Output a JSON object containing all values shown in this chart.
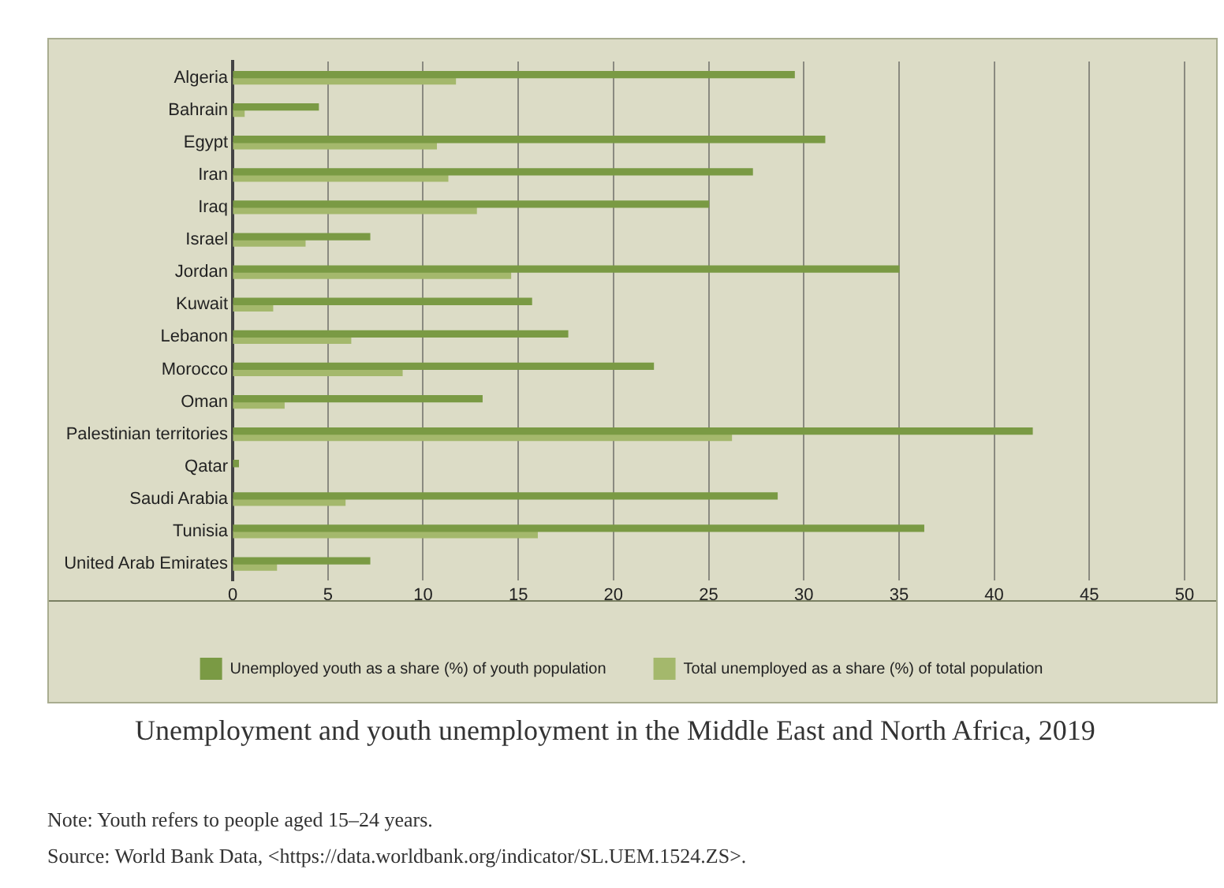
{
  "chart_data": {
    "type": "bar",
    "orientation": "horizontal",
    "title": "Unemployment and youth unemployment in the Middle East and North Africa, 2019",
    "categories": [
      "Algeria",
      "Bahrain",
      "Egypt",
      "Iran",
      "Iraq",
      "Israel",
      "Jordan",
      "Kuwait",
      "Lebanon",
      "Morocco",
      "Oman",
      "Palestinian territories",
      "Qatar",
      "Saudi Arabia",
      "Tunisia",
      "United Arab Emirates"
    ],
    "series": [
      {
        "name": "Unemployed youth as a share (%) of youth population",
        "color": "#7a9a44",
        "values": [
          29.5,
          4.5,
          31.1,
          27.3,
          25.0,
          7.2,
          35.0,
          15.7,
          17.6,
          22.1,
          13.1,
          42.0,
          0.3,
          28.6,
          36.3,
          7.2
        ]
      },
      {
        "name": "Total unemployed as a share (%) of total population",
        "color": "#a4b86c",
        "values": [
          11.7,
          0.6,
          10.7,
          11.3,
          12.8,
          3.8,
          14.6,
          2.1,
          6.2,
          8.9,
          2.7,
          26.2,
          null,
          5.9,
          16.0,
          2.3
        ]
      }
    ],
    "xlim": [
      0,
      50
    ],
    "xticks": [
      0,
      5,
      10,
      15,
      20,
      25,
      30,
      35,
      40,
      45,
      50
    ],
    "grid": "x",
    "legend": "bottom",
    "annotations": [
      "Note: Youth refers to people aged 15–24 years.",
      "Source: World Bank Data, <https://data.worldbank.org/indicator/SL.UEM.1524.ZS>."
    ]
  }
}
